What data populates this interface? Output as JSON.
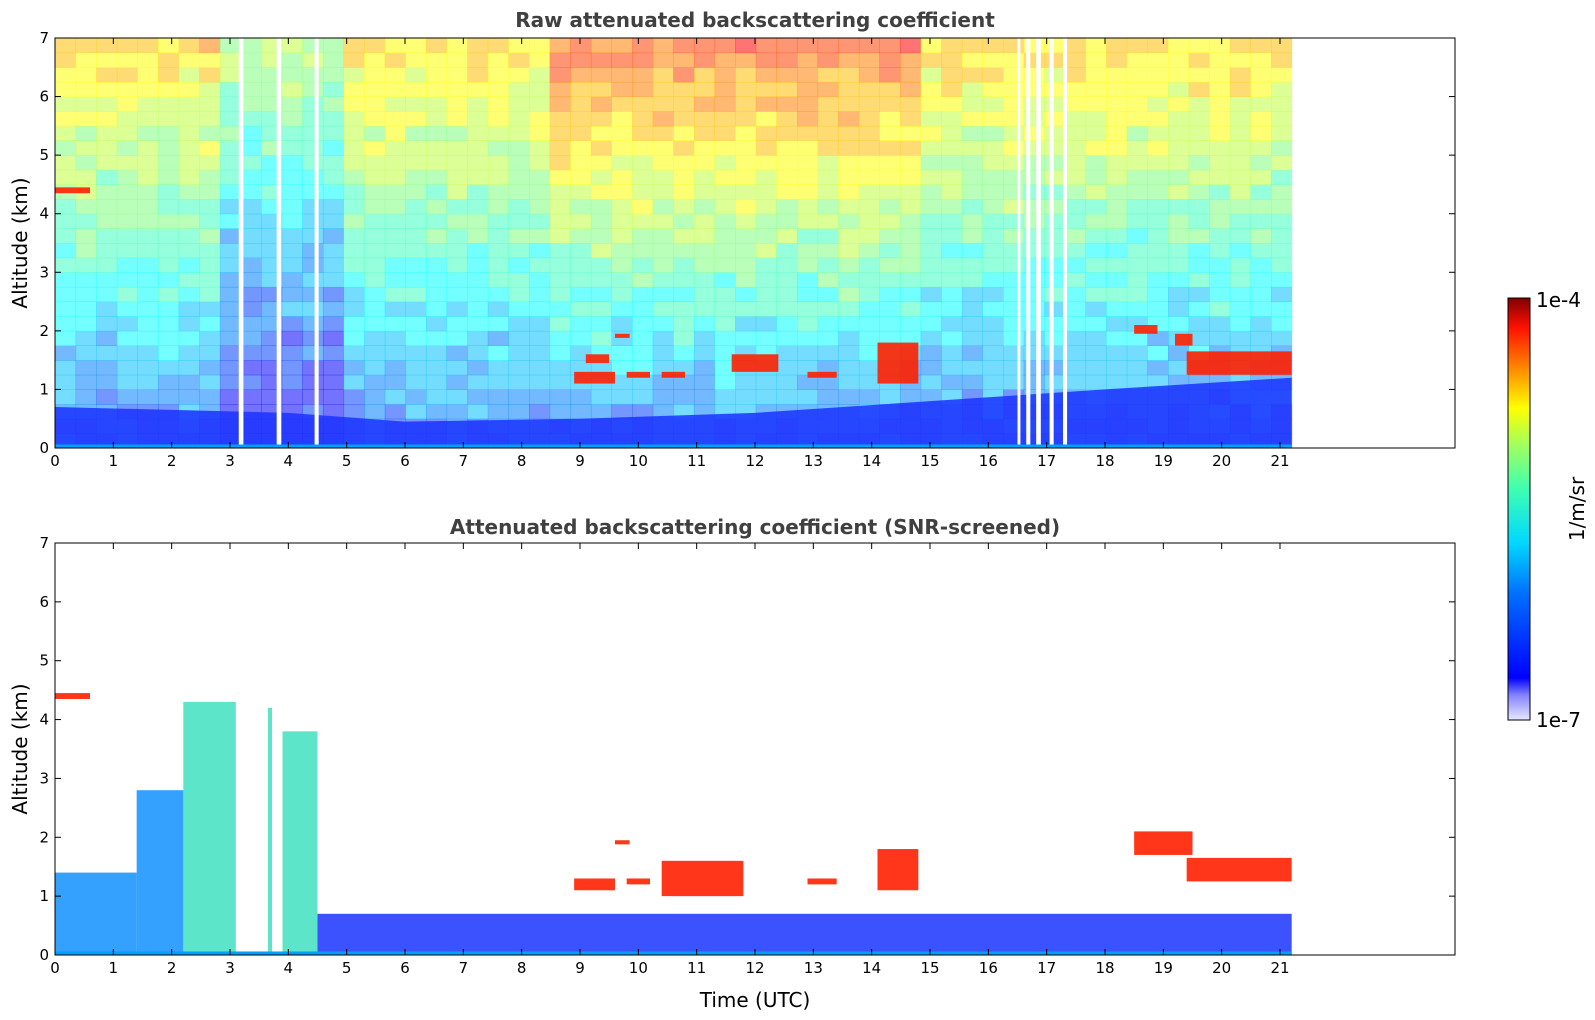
{
  "chart_data": [
    {
      "type": "heatmap",
      "title": "Raw attenuated backscattering coefficient",
      "xlabel": "",
      "ylabel": "Altitude (km)",
      "xlim": [
        0,
        24
      ],
      "ylim": [
        0,
        7
      ],
      "x_ticks": [
        "0",
        "1",
        "2",
        "3",
        "4",
        "5",
        "6",
        "7",
        "8",
        "9",
        "10",
        "11",
        "12",
        "13",
        "14",
        "15",
        "16",
        "17",
        "18",
        "19",
        "20",
        "21"
      ],
      "y_ticks": [
        "0",
        "1",
        "2",
        "3",
        "4",
        "5",
        "6",
        "7"
      ],
      "data_end_time": 21.2,
      "data_gaps": [
        [
          3.15,
          3.23
        ],
        [
          3.8,
          3.88
        ],
        [
          4.45,
          4.52
        ],
        [
          16.5,
          16.55
        ],
        [
          16.65,
          16.72
        ],
        [
          16.82,
          16.9
        ],
        [
          17.05,
          17.12
        ],
        [
          17.28,
          17.35
        ]
      ],
      "colorscale": "jet",
      "colorbar": {
        "min_label": "1e-7",
        "max_label": "1e-4",
        "label": "1/m/sr"
      },
      "features": {
        "cloud_layers": [
          {
            "x": [
              0.0,
              0.6
            ],
            "altitude": [
              4.35,
              4.45
            ]
          },
          {
            "x": [
              8.9,
              9.6
            ],
            "altitude": [
              1.1,
              1.3
            ]
          },
          {
            "x": [
              9.1,
              9.5
            ],
            "altitude": [
              1.45,
              1.6
            ]
          },
          {
            "x": [
              9.6,
              9.85
            ],
            "altitude": [
              1.88,
              1.95
            ]
          },
          {
            "x": [
              9.8,
              10.2
            ],
            "altitude": [
              1.2,
              1.3
            ]
          },
          {
            "x": [
              10.4,
              10.8
            ],
            "altitude": [
              1.2,
              1.3
            ]
          },
          {
            "x": [
              11.6,
              12.4
            ],
            "altitude": [
              1.3,
              1.6
            ]
          },
          {
            "x": [
              12.9,
              13.4
            ],
            "altitude": [
              1.2,
              1.3
            ]
          },
          {
            "x": [
              14.1,
              14.8
            ],
            "altitude": [
              1.1,
              1.8
            ]
          },
          {
            "x": [
              18.5,
              18.9
            ],
            "altitude": [
              1.95,
              2.1
            ]
          },
          {
            "x": [
              19.2,
              19.5
            ],
            "altitude": [
              1.75,
              1.95
            ]
          },
          {
            "x": [
              19.4,
              21.2
            ],
            "altitude": [
              1.25,
              1.65
            ]
          }
        ],
        "boundary_layer_top": {
          "x": [
            0,
            4,
            6,
            9,
            12,
            15,
            18,
            21.2
          ],
          "altitude": [
            0.7,
            0.6,
            0.45,
            0.5,
            0.6,
            0.8,
            1.0,
            1.2
          ]
        }
      }
    },
    {
      "type": "heatmap",
      "title": "Attenuated backscattering coefficient (SNR-screened)",
      "xlabel": "Time (UTC)",
      "ylabel": "Altitude (km)",
      "xlim": [
        0,
        24
      ],
      "ylim": [
        0,
        7
      ],
      "x_ticks": [
        "0",
        "1",
        "2",
        "3",
        "4",
        "5",
        "6",
        "7",
        "8",
        "9",
        "10",
        "11",
        "12",
        "13",
        "14",
        "15",
        "16",
        "17",
        "18",
        "19",
        "20",
        "21"
      ],
      "y_ticks": [
        "0",
        "1",
        "2",
        "3",
        "4",
        "5",
        "6",
        "7"
      ],
      "data_end_time": 21.2,
      "colorscale": "jet",
      "colorbar": {
        "min_label": "1e-7",
        "max_label": "1e-4",
        "label": "1/m/sr"
      },
      "features": {
        "signal_regions": [
          {
            "x": [
              0.0,
              1.4
            ],
            "altitude": [
              0.0,
              1.4
            ]
          },
          {
            "x": [
              1.4,
              2.2
            ],
            "altitude": [
              0.0,
              2.8
            ]
          },
          {
            "x": [
              2.2,
              3.1
            ],
            "altitude": [
              0.0,
              4.3
            ]
          },
          {
            "x": [
              3.65,
              3.72
            ],
            "altitude": [
              0.0,
              4.2
            ]
          },
          {
            "x": [
              3.9,
              4.5
            ],
            "altitude": [
              0.0,
              3.8
            ]
          },
          {
            "x": [
              4.5,
              21.2
            ],
            "altitude": [
              0.0,
              0.7
            ]
          }
        ],
        "cloud_layers": [
          {
            "x": [
              0.0,
              0.6
            ],
            "altitude": [
              4.35,
              4.45
            ]
          },
          {
            "x": [
              8.9,
              9.6
            ],
            "altitude": [
              1.1,
              1.3
            ]
          },
          {
            "x": [
              9.6,
              9.85
            ],
            "altitude": [
              1.88,
              1.95
            ]
          },
          {
            "x": [
              9.8,
              10.2
            ],
            "altitude": [
              1.2,
              1.3
            ]
          },
          {
            "x": [
              10.4,
              11.8
            ],
            "altitude": [
              1.0,
              1.6
            ]
          },
          {
            "x": [
              12.9,
              13.4
            ],
            "altitude": [
              1.2,
              1.3
            ]
          },
          {
            "x": [
              14.1,
              14.8
            ],
            "altitude": [
              1.1,
              1.8
            ]
          },
          {
            "x": [
              18.5,
              19.5
            ],
            "altitude": [
              1.7,
              2.1
            ]
          },
          {
            "x": [
              19.4,
              21.2
            ],
            "altitude": [
              1.25,
              1.65
            ]
          }
        ]
      }
    }
  ],
  "colorbar": {
    "top_label": "1e-4",
    "bottom_label": "1e-7",
    "unit_label": "1/m/sr"
  },
  "colors": {
    "title": "#404040",
    "axis": "#000000"
  }
}
